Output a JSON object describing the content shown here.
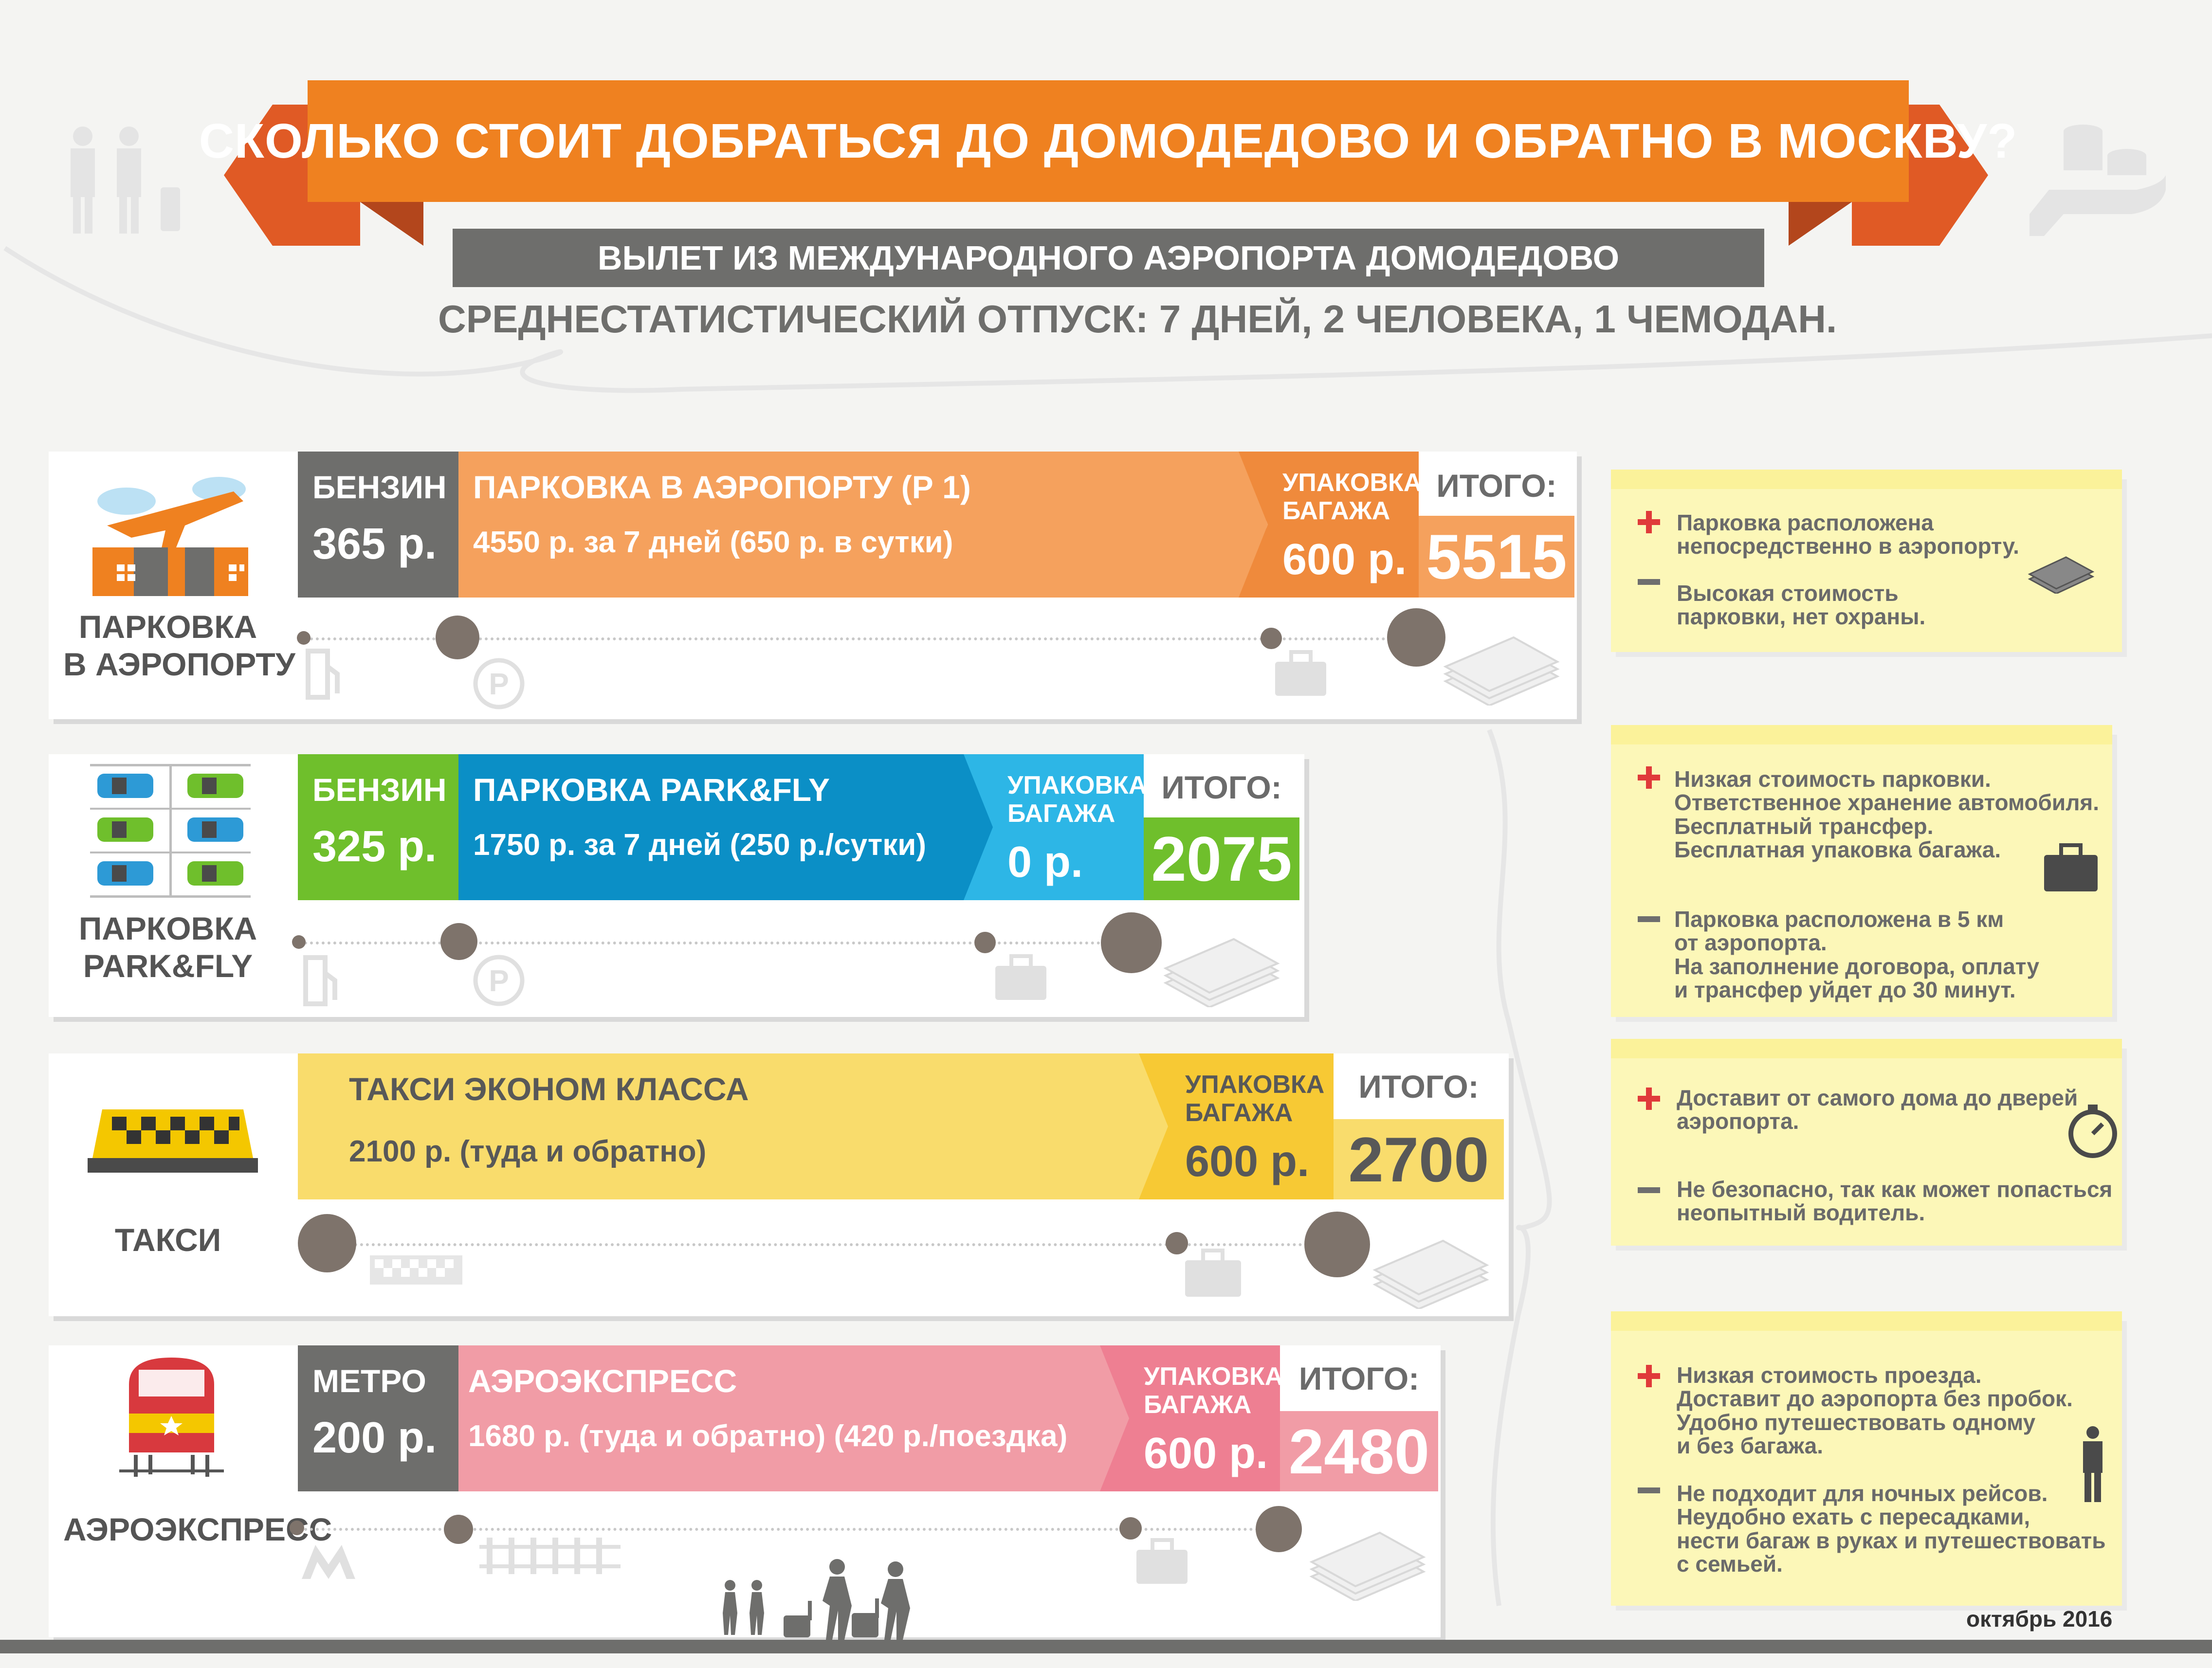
{
  "header": {
    "title": "СКОЛЬКО СТОИТ ДОБРАТЬСЯ ДО ДОМОДЕДОВО И ОБРАТНО В МОСКВУ?",
    "subtitle": "ВЫЛЕТ ИЗ МЕЖДУНАРОДНОГО АЭРОПОРТА ДОМОДЕДОВО",
    "tagline": "СРЕДНЕСТАТИСТИЧЕСКИЙ ОТПУСК: 7 ДНЕЙ, 2 ЧЕЛОВЕКА, 1 ЧЕМОДАН."
  },
  "options": [
    {
      "label": "ПАРКОВКА\nВ АЭРОПОРТУ",
      "fuel_title": "БЕНЗИН",
      "fuel_value": "365 р.",
      "main_title": "ПАРКОВКА В АЭРОПОРТУ (Р 1)",
      "main_detail": "4550 р. за 7 дней (650 р. в сутки)",
      "pack_title": "УПАКОВКА\nБАГАЖА",
      "pack_value": "600 р.",
      "total_label": "ИТОГО:",
      "total_value": "5515",
      "pros": "Парковка расположена\nнепосредственно в аэропорту.",
      "cons": "Высокая стоимость\nпарковки, нет охраны."
    },
    {
      "label": "ПАРКОВКА\nPARK&FLY",
      "fuel_title": "БЕНЗИН",
      "fuel_value": "325 р.",
      "main_title": "ПАРКОВКА  PARK&FLY",
      "main_detail": "1750 р. за 7 дней (250 р./сутки)",
      "pack_title": "УПАКОВКА\nБАГАЖА",
      "pack_value": "0 р.",
      "total_label": "ИТОГО:",
      "total_value": "2075",
      "pros": "Низкая стоимость парковки.\nОтветственное хранение автомобиля.\nБесплатный трансфер.\nБесплатная упаковка багажа.",
      "cons": "Парковка расположена в 5 км\nот аэропорта.\nНа заполнение договора, оплату\nи трансфер уйдет до 30 минут."
    },
    {
      "label": "ТАКСИ",
      "main_title": "ТАКСИ ЭКОНОМ КЛАССА",
      "main_detail": "2100 р. (туда и обратно)",
      "pack_title": "УПАКОВКА\nБАГАЖА",
      "pack_value": "600 р.",
      "total_label": "ИТОГО:",
      "total_value": "2700",
      "pros": "Доставит от самого дома до дверей\nаэропорта.",
      "cons": "Не безопасно, так как может попасться\nнеопытный водитель."
    },
    {
      "label": "АЭРОЭКСПРЕСС",
      "fuel_title": "МЕТРО",
      "fuel_value": "200 р.",
      "main_title": "АЭРОЭКСПРЕСС",
      "main_detail": "1680 р. (туда и обратно) (420 р./поездка)",
      "pack_title": "УПАКОВКА\nБАГАЖА",
      "pack_value": "600 р.",
      "total_label": "ИТОГО:",
      "total_value": "2480",
      "pros": "Низкая стоимость проезда.\nДоставит до аэропорта без пробок.\nУдобно путешествовать одному\nи без багажа.",
      "cons": "Не подходит для ночных рейсов.\nНеудобно ехать с пересадками,\nнести багаж в руках и путешествовать\nс семьей."
    }
  ],
  "footer": {
    "date": "октябрь 2016"
  },
  "colors": {
    "orange": "#ef8120",
    "gray": "#6e6e6c",
    "parking_main": "#f5a15d",
    "parking_pack": "#ef8a3c",
    "parking_total": "#f5a15d",
    "pf_fuel": "#6fbf2c",
    "pf_main": "#0b8fc6",
    "pf_pack": "#2db6e6",
    "pf_total": "#6fbf2c",
    "taxi_main": "#f9dc6c",
    "taxi_pack": "#f7c934",
    "taxi_total": "#f9dc6c",
    "aero_main": "#f19ca6",
    "aero_pack": "#ee7f92",
    "aero_total": "#f19ca6",
    "note": "#fcf7b8"
  },
  "icons": [
    "people-icon",
    "coins-hand-icon",
    "airplane-terminal-icon",
    "parking-lot-icon",
    "taxi-sign-icon",
    "train-icon",
    "fuel-icon",
    "parking-icon",
    "suitcase-icon",
    "wrapped-bag-icon",
    "stopwatch-icon",
    "person-icon",
    "metro-icon",
    "rails-icon",
    "travelers-icon"
  ]
}
